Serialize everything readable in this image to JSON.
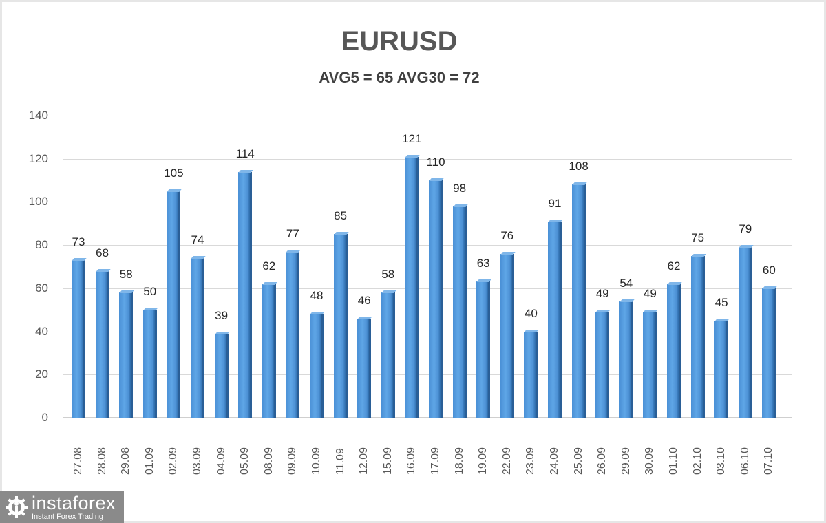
{
  "chart_data": {
    "type": "bar",
    "title": "EURUSD",
    "subtitle": "AVG5 = 65 AVG30 = 72",
    "xlabel": "",
    "ylabel": "",
    "ylim": [
      0,
      140
    ],
    "yticks": [
      0,
      20,
      40,
      60,
      80,
      100,
      120,
      140
    ],
    "grid": true,
    "legend": null,
    "data_labels": true,
    "categories": [
      "27.08",
      "28.08",
      "29.08",
      "01.09",
      "02.09",
      "03.09",
      "04.09",
      "05.09",
      "08.09",
      "09.09",
      "10.09",
      "11.09",
      "12.09",
      "15.09",
      "16.09",
      "17.09",
      "18.09",
      "19.09",
      "22.09",
      "23.09",
      "24.09",
      "25.09",
      "26.09",
      "29.09",
      "30.09",
      "01.10",
      "02.10",
      "03.10",
      "06.10",
      "07.10"
    ],
    "values": [
      73,
      68,
      58,
      50,
      105,
      74,
      39,
      114,
      62,
      77,
      48,
      85,
      46,
      58,
      121,
      110,
      98,
      63,
      76,
      40,
      91,
      108,
      49,
      54,
      49,
      62,
      75,
      45,
      79,
      60
    ],
    "series_color": "#4a90d6"
  },
  "header": {
    "title": "EURUSD",
    "subtitle": "AVG5 = 65 AVG30 = 72"
  },
  "yaxis": {
    "ticks": [
      "0",
      "20",
      "40",
      "60",
      "80",
      "100",
      "120",
      "140"
    ]
  },
  "watermark": {
    "brand": "instaforex",
    "tagline": "Instant Forex Trading",
    "icon": "gear-person-icon"
  }
}
